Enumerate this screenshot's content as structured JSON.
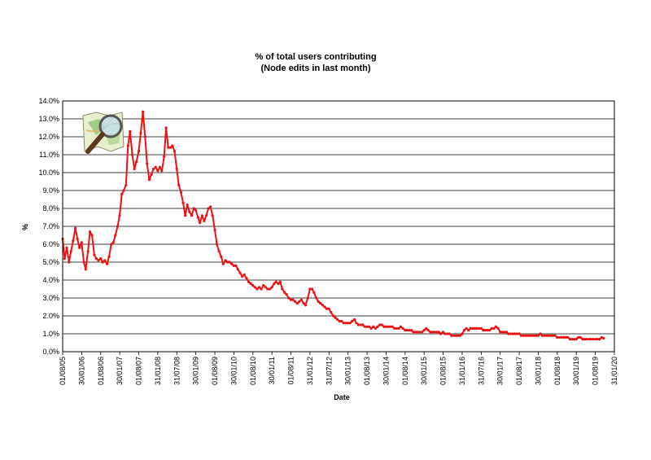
{
  "chart_data": {
    "type": "scatter",
    "title": "% of total users contributing",
    "subtitle": "(Node edits in last month)",
    "xlabel": "Date",
    "ylabel": "%",
    "ylim": [
      0,
      14
    ],
    "y_ticks": [
      "0.0%",
      "1.0%",
      "2.0%",
      "3.0%",
      "4.0%",
      "5.0%",
      "6.0%",
      "7.0%",
      "8.0%",
      "9.0%",
      "10.0%",
      "11.0%",
      "12.0%",
      "13.0%",
      "14.0%"
    ],
    "x_ticks": [
      "01/08/05",
      "30/01/06",
      "01/08/06",
      "30/01/07",
      "01/08/07",
      "31/01/08",
      "31/07/08",
      "30/01/09",
      "01/08/09",
      "30/01/10",
      "01/08/10",
      "30/01/11",
      "01/08/11",
      "31/01/12",
      "31/07/12",
      "30/01/13",
      "01/08/13",
      "30/01/14",
      "01/08/14",
      "30/01/15",
      "01/08/15",
      "31/01/16",
      "31/07/16",
      "30/01/17",
      "01/08/17",
      "30/01/18",
      "01/08/18",
      "30/01/19",
      "01/08/19",
      "31/01/20"
    ],
    "xlim": [
      "2005-08-01",
      "2020-01-31"
    ],
    "grid": true,
    "legend": "none",
    "marker_color": "#ee1111",
    "series": [
      {
        "points": [
          [
            "2005-08-01",
            6.3
          ],
          [
            "2005-08-20",
            5.2
          ],
          [
            "2005-09-10",
            5.8
          ],
          [
            "2005-10-01",
            5.0
          ],
          [
            "2005-10-20",
            5.6
          ],
          [
            "2005-11-10",
            6.2
          ],
          [
            "2005-12-01",
            6.9
          ],
          [
            "2005-12-20",
            6.3
          ],
          [
            "2006-01-10",
            5.8
          ],
          [
            "2006-01-30",
            6.1
          ],
          [
            "2006-02-20",
            5.0
          ],
          [
            "2006-03-10",
            4.6
          ],
          [
            "2006-04-01",
            5.6
          ],
          [
            "2006-04-20",
            6.7
          ],
          [
            "2006-05-10",
            6.5
          ],
          [
            "2006-06-01",
            5.4
          ],
          [
            "2006-06-20",
            5.2
          ],
          [
            "2006-07-10",
            5.1
          ],
          [
            "2006-08-01",
            5.2
          ],
          [
            "2006-08-20",
            5.0
          ],
          [
            "2006-09-10",
            5.1
          ],
          [
            "2006-10-01",
            4.9
          ],
          [
            "2006-10-20",
            5.3
          ],
          [
            "2006-11-10",
            6.0
          ],
          [
            "2006-12-01",
            6.1
          ],
          [
            "2006-12-20",
            6.5
          ],
          [
            "2007-01-10",
            7.0
          ],
          [
            "2007-01-30",
            7.6
          ],
          [
            "2007-02-20",
            8.8
          ],
          [
            "2007-03-10",
            9.0
          ],
          [
            "2007-04-01",
            9.3
          ],
          [
            "2007-04-20",
            11.5
          ],
          [
            "2007-05-10",
            12.3
          ],
          [
            "2007-06-01",
            11.0
          ],
          [
            "2007-06-20",
            10.2
          ],
          [
            "2007-07-10",
            10.6
          ],
          [
            "2007-08-01",
            11.2
          ],
          [
            "2007-08-20",
            12.2
          ],
          [
            "2007-09-10",
            13.4
          ],
          [
            "2007-10-01",
            12.0
          ],
          [
            "2007-10-20",
            10.5
          ],
          [
            "2007-11-10",
            9.6
          ],
          [
            "2007-12-01",
            9.9
          ],
          [
            "2007-12-20",
            10.2
          ],
          [
            "2008-01-10",
            10.3
          ],
          [
            "2008-01-31",
            10.1
          ],
          [
            "2008-02-20",
            10.3
          ],
          [
            "2008-03-10",
            10.1
          ],
          [
            "2008-04-01",
            10.9
          ],
          [
            "2008-04-20",
            12.5
          ],
          [
            "2008-05-10",
            11.4
          ],
          [
            "2008-06-01",
            11.4
          ],
          [
            "2008-06-20",
            11.5
          ],
          [
            "2008-07-10",
            11.2
          ],
          [
            "2008-07-31",
            10.2
          ],
          [
            "2008-08-20",
            9.3
          ],
          [
            "2008-09-10",
            8.9
          ],
          [
            "2008-10-01",
            8.3
          ],
          [
            "2008-10-20",
            7.6
          ],
          [
            "2008-11-10",
            8.2
          ],
          [
            "2008-12-01",
            7.8
          ],
          [
            "2008-12-20",
            7.6
          ],
          [
            "2009-01-10",
            8.0
          ],
          [
            "2009-01-30",
            7.9
          ],
          [
            "2009-02-20",
            7.5
          ],
          [
            "2009-03-10",
            7.2
          ],
          [
            "2009-04-01",
            7.6
          ],
          [
            "2009-04-20",
            7.3
          ],
          [
            "2009-05-10",
            7.6
          ],
          [
            "2009-06-01",
            8.0
          ],
          [
            "2009-06-20",
            8.1
          ],
          [
            "2009-07-10",
            7.6
          ],
          [
            "2009-08-01",
            6.8
          ],
          [
            "2009-08-20",
            6.0
          ],
          [
            "2009-09-10",
            5.6
          ],
          [
            "2009-10-01",
            5.3
          ],
          [
            "2009-10-20",
            4.9
          ],
          [
            "2009-11-10",
            5.1
          ],
          [
            "2009-12-01",
            5.0
          ],
          [
            "2009-12-20",
            5.0
          ],
          [
            "2010-01-10",
            4.9
          ],
          [
            "2010-01-30",
            4.8
          ],
          [
            "2010-02-20",
            4.8
          ],
          [
            "2010-03-10",
            4.6
          ],
          [
            "2010-04-01",
            4.4
          ],
          [
            "2010-04-20",
            4.2
          ],
          [
            "2010-05-10",
            4.3
          ],
          [
            "2010-06-01",
            4.1
          ],
          [
            "2010-06-20",
            3.9
          ],
          [
            "2010-07-10",
            3.8
          ],
          [
            "2010-08-01",
            3.7
          ],
          [
            "2010-08-20",
            3.6
          ],
          [
            "2010-09-10",
            3.5
          ],
          [
            "2010-10-01",
            3.6
          ],
          [
            "2010-10-20",
            3.5
          ],
          [
            "2010-11-10",
            3.7
          ],
          [
            "2010-12-01",
            3.6
          ],
          [
            "2010-12-20",
            3.5
          ],
          [
            "2011-01-10",
            3.5
          ],
          [
            "2011-01-30",
            3.6
          ],
          [
            "2011-02-20",
            3.8
          ],
          [
            "2011-03-10",
            3.9
          ],
          [
            "2011-04-01",
            3.8
          ],
          [
            "2011-04-20",
            3.9
          ],
          [
            "2011-05-10",
            3.5
          ],
          [
            "2011-06-01",
            3.3
          ],
          [
            "2011-06-20",
            3.2
          ],
          [
            "2011-07-10",
            3.0
          ],
          [
            "2011-08-01",
            2.9
          ],
          [
            "2011-08-20",
            2.9
          ],
          [
            "2011-09-10",
            2.8
          ],
          [
            "2011-10-01",
            2.7
          ],
          [
            "2011-10-20",
            2.8
          ],
          [
            "2011-11-10",
            2.9
          ],
          [
            "2011-12-01",
            2.7
          ],
          [
            "2011-12-20",
            2.6
          ],
          [
            "2012-01-10",
            3.0
          ],
          [
            "2012-01-31",
            3.5
          ],
          [
            "2012-02-20",
            3.5
          ],
          [
            "2012-03-10",
            3.3
          ],
          [
            "2012-04-01",
            3.0
          ],
          [
            "2012-04-20",
            2.8
          ],
          [
            "2012-05-10",
            2.7
          ],
          [
            "2012-06-01",
            2.6
          ],
          [
            "2012-06-20",
            2.5
          ],
          [
            "2012-07-10",
            2.4
          ],
          [
            "2012-07-31",
            2.4
          ],
          [
            "2012-08-20",
            2.2
          ],
          [
            "2012-09-10",
            2.0
          ],
          [
            "2012-10-01",
            1.9
          ],
          [
            "2012-10-20",
            1.8
          ],
          [
            "2012-11-10",
            1.7
          ],
          [
            "2012-12-01",
            1.7
          ],
          [
            "2012-12-20",
            1.6
          ],
          [
            "2013-01-10",
            1.6
          ],
          [
            "2013-01-30",
            1.6
          ],
          [
            "2013-02-20",
            1.6
          ],
          [
            "2013-03-10",
            1.7
          ],
          [
            "2013-04-01",
            1.8
          ],
          [
            "2013-04-20",
            1.6
          ],
          [
            "2013-05-10",
            1.5
          ],
          [
            "2013-06-01",
            1.5
          ],
          [
            "2013-06-20",
            1.5
          ],
          [
            "2013-07-10",
            1.4
          ],
          [
            "2013-08-01",
            1.4
          ],
          [
            "2013-08-20",
            1.4
          ],
          [
            "2013-09-10",
            1.3
          ],
          [
            "2013-10-01",
            1.4
          ],
          [
            "2013-10-20",
            1.3
          ],
          [
            "2013-11-10",
            1.4
          ],
          [
            "2013-12-01",
            1.5
          ],
          [
            "2013-12-20",
            1.5
          ],
          [
            "2014-01-10",
            1.4
          ],
          [
            "2014-01-30",
            1.4
          ],
          [
            "2014-02-20",
            1.4
          ],
          [
            "2014-03-10",
            1.4
          ],
          [
            "2014-04-01",
            1.4
          ],
          [
            "2014-04-20",
            1.3
          ],
          [
            "2014-05-10",
            1.3
          ],
          [
            "2014-06-01",
            1.3
          ],
          [
            "2014-06-20",
            1.4
          ],
          [
            "2014-07-10",
            1.3
          ],
          [
            "2014-08-01",
            1.2
          ],
          [
            "2014-08-20",
            1.2
          ],
          [
            "2014-09-10",
            1.2
          ],
          [
            "2014-10-01",
            1.2
          ],
          [
            "2014-10-20",
            1.1
          ],
          [
            "2014-11-10",
            1.1
          ],
          [
            "2014-12-01",
            1.1
          ],
          [
            "2014-12-20",
            1.1
          ],
          [
            "2015-01-10",
            1.1
          ],
          [
            "2015-01-30",
            1.2
          ],
          [
            "2015-02-20",
            1.3
          ],
          [
            "2015-03-10",
            1.2
          ],
          [
            "2015-04-01",
            1.1
          ],
          [
            "2015-04-20",
            1.1
          ],
          [
            "2015-05-10",
            1.1
          ],
          [
            "2015-06-01",
            1.1
          ],
          [
            "2015-06-20",
            1.1
          ],
          [
            "2015-07-10",
            1.0
          ],
          [
            "2015-08-01",
            1.1
          ],
          [
            "2015-08-20",
            1.0
          ],
          [
            "2015-09-10",
            1.0
          ],
          [
            "2015-10-01",
            1.0
          ],
          [
            "2015-10-20",
            0.9
          ],
          [
            "2015-11-10",
            0.9
          ],
          [
            "2015-12-01",
            0.9
          ],
          [
            "2015-12-20",
            0.9
          ],
          [
            "2016-01-10",
            0.9
          ],
          [
            "2016-01-31",
            1.0
          ],
          [
            "2016-02-20",
            1.2
          ],
          [
            "2016-03-10",
            1.3
          ],
          [
            "2016-04-01",
            1.2
          ],
          [
            "2016-04-20",
            1.3
          ],
          [
            "2016-05-10",
            1.3
          ],
          [
            "2016-06-01",
            1.3
          ],
          [
            "2016-06-20",
            1.3
          ],
          [
            "2016-07-10",
            1.3
          ],
          [
            "2016-07-31",
            1.3
          ],
          [
            "2016-08-20",
            1.2
          ],
          [
            "2016-09-10",
            1.2
          ],
          [
            "2016-10-01",
            1.2
          ],
          [
            "2016-10-20",
            1.2
          ],
          [
            "2016-11-10",
            1.3
          ],
          [
            "2016-12-01",
            1.3
          ],
          [
            "2016-12-20",
            1.4
          ],
          [
            "2017-01-10",
            1.3
          ],
          [
            "2017-01-30",
            1.1
          ],
          [
            "2017-02-20",
            1.1
          ],
          [
            "2017-03-10",
            1.1
          ],
          [
            "2017-04-01",
            1.1
          ],
          [
            "2017-04-20",
            1.0
          ],
          [
            "2017-05-10",
            1.0
          ],
          [
            "2017-06-01",
            1.0
          ],
          [
            "2017-06-20",
            1.0
          ],
          [
            "2017-07-10",
            1.0
          ],
          [
            "2017-08-01",
            1.0
          ],
          [
            "2017-08-20",
            0.9
          ],
          [
            "2017-09-10",
            0.9
          ],
          [
            "2017-10-01",
            0.9
          ],
          [
            "2017-10-20",
            0.9
          ],
          [
            "2017-11-10",
            0.9
          ],
          [
            "2017-12-01",
            0.9
          ],
          [
            "2017-12-20",
            0.9
          ],
          [
            "2018-01-10",
            0.9
          ],
          [
            "2018-01-30",
            0.9
          ],
          [
            "2018-02-20",
            1.0
          ],
          [
            "2018-03-10",
            0.9
          ],
          [
            "2018-04-01",
            0.9
          ],
          [
            "2018-04-20",
            0.9
          ],
          [
            "2018-05-10",
            0.9
          ],
          [
            "2018-06-01",
            0.9
          ],
          [
            "2018-06-20",
            0.9
          ],
          [
            "2018-07-10",
            0.9
          ],
          [
            "2018-08-01",
            0.8
          ],
          [
            "2018-08-20",
            0.8
          ],
          [
            "2018-09-10",
            0.8
          ],
          [
            "2018-10-01",
            0.8
          ],
          [
            "2018-10-20",
            0.8
          ],
          [
            "2018-11-10",
            0.8
          ],
          [
            "2018-12-01",
            0.7
          ],
          [
            "2018-12-20",
            0.7
          ],
          [
            "2019-01-10",
            0.7
          ],
          [
            "2019-01-30",
            0.7
          ],
          [
            "2019-02-20",
            0.8
          ],
          [
            "2019-03-10",
            0.8
          ],
          [
            "2019-04-01",
            0.7
          ],
          [
            "2019-04-20",
            0.7
          ],
          [
            "2019-05-10",
            0.7
          ],
          [
            "2019-06-01",
            0.7
          ],
          [
            "2019-06-20",
            0.7
          ],
          [
            "2019-07-10",
            0.7
          ],
          [
            "2019-08-01",
            0.7
          ],
          [
            "2019-08-20",
            0.7
          ],
          [
            "2019-09-10",
            0.7
          ],
          [
            "2019-10-01",
            0.8
          ],
          [
            "2019-10-20",
            0.75
          ]
        ]
      }
    ]
  }
}
